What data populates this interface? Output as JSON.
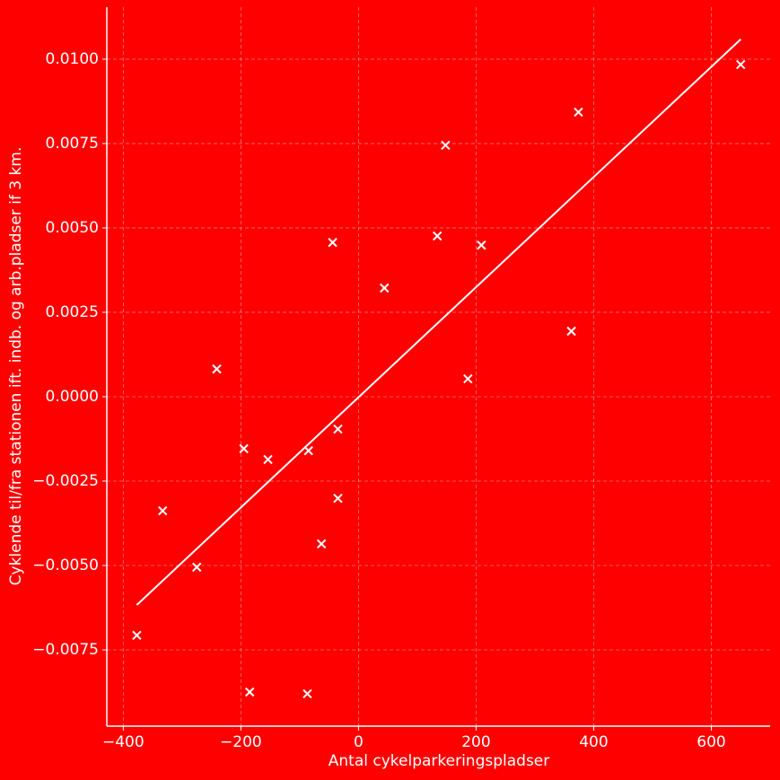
{
  "chart_data": {
    "type": "scatter",
    "xlabel": "Antal cykelparkeringspladser",
    "ylabel": "Cyklende til/fra stationen ift. indb. og arb.pladser if 3 km.",
    "background": "#ff0000",
    "color": "#ffffff",
    "grid": true,
    "xlim": [
      -428,
      700
    ],
    "ylim": [
      -0.00976,
      0.01154
    ],
    "xticks": [
      {
        "value": -400,
        "label": "−400"
      },
      {
        "value": -200,
        "label": "−200"
      },
      0,
      200,
      400,
      600
    ],
    "yticks": [
      {
        "value": -0.0075,
        "label": "−0.0075"
      },
      {
        "value": -0.005,
        "label": "−0.0050"
      },
      {
        "value": -0.0025,
        "label": "−0.0025"
      },
      {
        "value": 0,
        "label": "0.0000"
      },
      {
        "value": 0.0025,
        "label": "0.0025"
      },
      {
        "value": 0.005,
        "label": "0.0050"
      },
      {
        "value": 0.0075,
        "label": "0.0075"
      },
      {
        "value": 0.01,
        "label": "0.0100"
      }
    ],
    "points": {
      "x": [
        -377,
        -333,
        -275,
        -241,
        -195,
        -185,
        -154,
        -85,
        -87,
        -63,
        -44,
        -35,
        -35,
        44,
        134,
        148,
        186,
        209,
        362,
        374,
        650
      ],
      "y": [
        -0.00707,
        -0.00338,
        -0.00505,
        0.00082,
        -0.00154,
        -0.00875,
        -0.00186,
        -0.0016,
        -0.0088,
        -0.00436,
        0.00457,
        -0.00096,
        -0.00301,
        0.00322,
        0.00476,
        0.00745,
        0.00053,
        0.00449,
        0.00194,
        0.00843,
        0.00984
      ]
    },
    "fit": {
      "x": [
        -377,
        650
      ],
      "y": [
        -0.00617,
        0.01059
      ]
    }
  }
}
